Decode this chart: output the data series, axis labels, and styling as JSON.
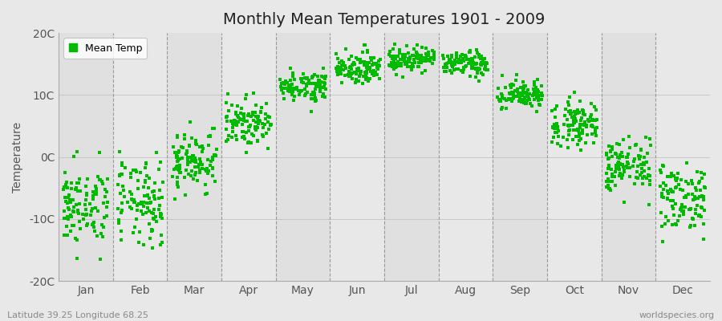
{
  "title": "Monthly Mean Temperatures 1901 - 2009",
  "ylabel": "Temperature",
  "dot_color": "#00BB00",
  "background_color": "#e8e8e8",
  "ylim": [
    -20,
    20
  ],
  "yticks": [
    -20,
    -10,
    0,
    10,
    20
  ],
  "ytick_labels": [
    "-20C",
    "-10C",
    "0C",
    "10C",
    "20C"
  ],
  "months": [
    "Jan",
    "Feb",
    "Mar",
    "Apr",
    "May",
    "Jun",
    "Jul",
    "Aug",
    "Sep",
    "Oct",
    "Nov",
    "Dec"
  ],
  "legend_label": "Mean Temp",
  "subtitle_left": "Latitude 39.25 Longitude 68.25",
  "subtitle_right": "worldspecies.org",
  "title_fontsize": 14,
  "label_fontsize": 10,
  "tick_fontsize": 10,
  "dot_size": 5,
  "monthly_means": [
    -8.0,
    -7.5,
    -0.5,
    5.5,
    11.5,
    14.5,
    15.8,
    15.0,
    10.0,
    5.5,
    -1.5,
    -6.5
  ],
  "monthly_stds": [
    3.2,
    3.5,
    2.5,
    1.8,
    1.2,
    1.2,
    1.0,
    1.0,
    1.2,
    1.8,
    2.2,
    2.8
  ],
  "col_colors": [
    "#e0e0e0",
    "#e8e8e8",
    "#e0e0e0",
    "#e8e8e8",
    "#e0e0e0",
    "#e8e8e8",
    "#e0e0e0",
    "#e8e8e8",
    "#e0e0e0",
    "#e8e8e8",
    "#e0e0e0",
    "#e8e8e8"
  ]
}
